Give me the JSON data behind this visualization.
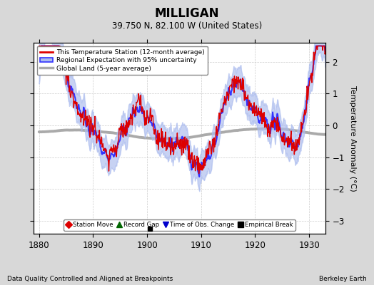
{
  "title": "MILLIGAN",
  "subtitle": "39.750 N, 82.100 W (United States)",
  "ylabel": "Temperature Anomaly (°C)",
  "footer_left": "Data Quality Controlled and Aligned at Breakpoints",
  "footer_right": "Berkeley Earth",
  "xlim": [
    1879,
    1933
  ],
  "ylim": [
    -3.4,
    2.6
  ],
  "yticks": [
    -3,
    -2,
    -1,
    0,
    1,
    2
  ],
  "xticks": [
    1880,
    1890,
    1900,
    1910,
    1920,
    1930
  ],
  "fig_bg_color": "#d8d8d8",
  "plot_bg": "#ffffff",
  "regional_color": "#3333ff",
  "regional_band_color": "#aabbee",
  "station_color": "#dd0000",
  "global_color": "#aaaaaa",
  "seed": 42,
  "empirical_break_year": 1900,
  "legend_labels": [
    "This Temperature Station (12-month average)",
    "Regional Expectation with 95% uncertainty",
    "Global Land (5-year average)"
  ],
  "marker_legend": [
    {
      "label": "Station Move",
      "marker": "D",
      "color": "#dd0000"
    },
    {
      "label": "Record Gap",
      "marker": "^",
      "color": "#006600"
    },
    {
      "label": "Time of Obs. Change",
      "marker": "v",
      "color": "#0000cc"
    },
    {
      "label": "Empirical Break",
      "marker": "s",
      "color": "#000000"
    }
  ]
}
